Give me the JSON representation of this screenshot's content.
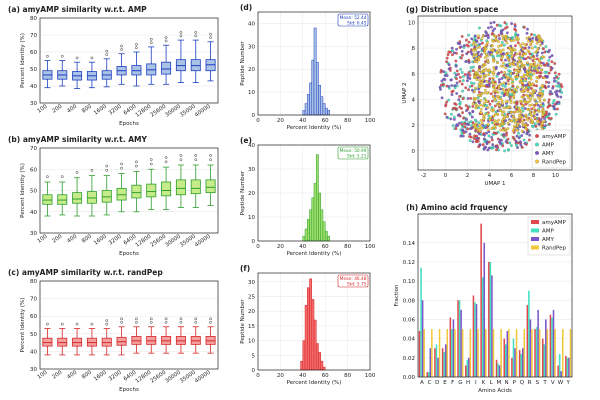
{
  "colors": {
    "amyAMP": "#e0474c",
    "AMP": "#40e0c0",
    "AMY": "#7a55c8",
    "RandPep": "#f2c93a",
    "blue": "#1f3fbf",
    "green": "#2e9e2e",
    "red": "#d62728",
    "grid": "#e6e6e6"
  },
  "chart_data": [
    {
      "type": "box",
      "panel": "a",
      "title": "(a) amyAMP similarity w.r.t. AMP",
      "xlabel": "Epochs",
      "ylabel": "Percent Identity (%)",
      "ylim": [
        30,
        80
      ],
      "yticks": [
        30,
        40,
        50,
        60,
        70,
        80
      ],
      "categories": [
        "100",
        "200",
        "400",
        "800",
        "1600",
        "3200",
        "6400",
        "12800",
        "25600",
        "30000",
        "35000",
        "40000"
      ],
      "medians": [
        46.5,
        46.5,
        46,
        46,
        46.5,
        49,
        49,
        49.5,
        50,
        52,
        52,
        52.5
      ],
      "q1": [
        44,
        44,
        43.5,
        43.5,
        44,
        46.5,
        46.5,
        46.5,
        47,
        49,
        49,
        49
      ],
      "q3": [
        49,
        49,
        48.5,
        48.5,
        49,
        51.5,
        52,
        53,
        54,
        55.5,
        55.5,
        55.5
      ],
      "whisker_low": [
        39,
        40,
        38.5,
        39,
        39.5,
        41,
        40,
        41,
        41,
        42,
        42,
        43
      ],
      "whisker_high": [
        55,
        55,
        54,
        54,
        56,
        59,
        60,
        63,
        64,
        67,
        67,
        66
      ],
      "color": "#1f3fbf",
      "fill": "#a9c2e6"
    },
    {
      "type": "box",
      "panel": "b",
      "title": "(b) amyAMP similarity w.r.t. AMY",
      "xlabel": "Epochs",
      "ylabel": "Percent Identity (%)",
      "ylim": [
        30,
        70
      ],
      "yticks": [
        30,
        40,
        50,
        60,
        70
      ],
      "categories": [
        "100",
        "200",
        "400",
        "800",
        "1600",
        "3200",
        "6400",
        "12800",
        "25600",
        "30000",
        "35000",
        "40000"
      ],
      "medians": [
        45.5,
        45.5,
        46,
        46.5,
        47,
        48,
        49,
        49.5,
        50,
        51,
        51,
        51.5
      ],
      "q1": [
        43.5,
        43.5,
        44,
        44,
        44.5,
        45.5,
        46.5,
        47,
        47.5,
        48,
        48.5,
        49
      ],
      "q3": [
        48,
        48,
        49,
        49.5,
        50,
        51,
        52.5,
        53,
        54,
        55,
        55,
        55
      ],
      "whisker_low": [
        38,
        38.5,
        38,
        38,
        38.5,
        40,
        40,
        41,
        41,
        42,
        42,
        43
      ],
      "whisker_high": [
        54,
        54,
        56,
        57,
        57,
        58,
        59,
        60,
        61,
        62,
        62,
        62
      ],
      "color": "#2e9e2e",
      "fill": "#c6ec8a"
    },
    {
      "type": "box",
      "panel": "c",
      "title": "(c) amyAMP similarity w.r.t. randPep",
      "xlabel": "Epochs",
      "ylabel": "Percent Identity (%)",
      "ylim": [
        30,
        80
      ],
      "yticks": [
        30,
        40,
        50,
        60,
        70,
        80
      ],
      "categories": [
        "100",
        "200",
        "400",
        "800",
        "1600",
        "3200",
        "6400",
        "12800",
        "25600",
        "30000",
        "35000",
        "40000"
      ],
      "medians": [
        45,
        45,
        45,
        45,
        45,
        45.5,
        46,
        46,
        46,
        46,
        46,
        46
      ],
      "q1": [
        43,
        43,
        43,
        43,
        43,
        43.5,
        44,
        44,
        44,
        44,
        44,
        44
      ],
      "q3": [
        47.5,
        47.5,
        47.5,
        47.5,
        47.5,
        48,
        48.5,
        48.5,
        48.5,
        48.5,
        48.5,
        48.5
      ],
      "whisker_low": [
        38,
        38,
        38,
        38,
        38,
        38,
        39,
        39,
        39,
        39,
        39,
        39
      ],
      "whisker_high": [
        53,
        53,
        53,
        53,
        53,
        54,
        54,
        54,
        54,
        54,
        54,
        54
      ],
      "color": "#d62728",
      "fill": "#f3a0a0"
    },
    {
      "type": "histogram",
      "panel": "d",
      "xlabel": "Percent Identity (%)",
      "ylabel": "Peptide Number",
      "xlim": [
        0,
        100
      ],
      "ylim": [
        0,
        45
      ],
      "xticks": [
        0,
        20,
        40,
        60,
        80,
        100
      ],
      "yticks": [
        0,
        10,
        20,
        30,
        40
      ],
      "bin_start": 40,
      "bin_width": 2,
      "counts": [
        2,
        5,
        9,
        14,
        24,
        38,
        23,
        13,
        8,
        5,
        3,
        2
      ],
      "stats": {
        "mean": "Mean: 52.44",
        "std": "Std: 6.45"
      },
      "color": "#1f3fbf",
      "fill": "#a9c2e6"
    },
    {
      "type": "histogram",
      "panel": "e",
      "xlabel": "Percent Identity (%)",
      "ylabel": "Peptide Number",
      "xlim": [
        0,
        100
      ],
      "ylim": [
        0,
        40
      ],
      "xticks": [
        0,
        20,
        40,
        60,
        80,
        100
      ],
      "yticks": [
        0,
        10,
        20,
        30,
        40
      ],
      "bin_start": 40,
      "bin_width": 2,
      "counts": [
        2,
        5,
        9,
        13,
        18,
        24,
        36,
        20,
        13,
        8,
        4,
        2
      ],
      "stats": {
        "mean": "Mean: 50.99",
        "std": "Std: 5.21"
      },
      "color": "#2e9e2e",
      "fill": "#9ee06a"
    },
    {
      "type": "histogram",
      "panel": "f",
      "xlabel": "Percent Identity (%)",
      "ylabel": "Peptide Number",
      "xlim": [
        0,
        100
      ],
      "ylim": [
        0,
        33
      ],
      "xticks": [
        0,
        20,
        40,
        60,
        80,
        100
      ],
      "yticks": [
        0,
        5,
        10,
        15,
        20,
        25,
        30
      ],
      "bin_start": 38,
      "bin_width": 2,
      "counts": [
        3,
        10,
        22,
        28,
        31,
        24,
        17,
        9,
        6,
        3,
        1
      ],
      "stats": {
        "mean": "Mean: 46.48",
        "std": "Std: 5.75"
      },
      "color": "#d62728",
      "fill": "#f36a6a"
    },
    {
      "type": "scatter",
      "panel": "g",
      "title": "(g) Distribution space",
      "xlabel": "UMAP 1",
      "ylabel": "UMAP 2",
      "xlim": [
        -2.5,
        11.5
      ],
      "ylim": [
        -1.5,
        10.5
      ],
      "xticks": [
        -2,
        0,
        2,
        4,
        6,
        8,
        10
      ],
      "yticks": [
        0,
        2,
        4,
        6,
        8,
        10
      ],
      "series": [
        {
          "name": "amyAMP"
        },
        {
          "name": "AMP"
        },
        {
          "name": "AMY"
        },
        {
          "name": "RandPep"
        }
      ],
      "legend": "bottom-right"
    },
    {
      "type": "bar",
      "panel": "h",
      "title": "(h) Amino acid frquency",
      "xlabel": "Amino Acids",
      "ylabel": "Fraction",
      "ylim": [
        0,
        0.17
      ],
      "yticks": [
        0.0,
        0.02,
        0.04,
        0.06,
        0.08,
        0.1,
        0.12,
        0.14
      ],
      "categories": [
        "A",
        "C",
        "D",
        "E",
        "F",
        "G",
        "H",
        "I",
        "K",
        "L",
        "M",
        "N",
        "P",
        "Q",
        "R",
        "S",
        "T",
        "V",
        "W",
        "Y"
      ],
      "series": [
        {
          "name": "amyAMP",
          "values": [
            0.048,
            0.005,
            0.03,
            0.03,
            0.062,
            0.08,
            0.012,
            0.085,
            0.16,
            0.12,
            0.018,
            0.04,
            0.02,
            0.028,
            0.075,
            0.05,
            0.04,
            0.065,
            0.012,
            0.022
          ]
        },
        {
          "name": "AMP",
          "values": [
            0.114,
            0.005,
            0.034,
            0.026,
            0.05,
            0.08,
            0.018,
            0.078,
            0.104,
            0.12,
            0.014,
            0.034,
            0.04,
            0.024,
            0.09,
            0.052,
            0.034,
            0.062,
            0.024,
            0.02
          ]
        },
        {
          "name": "AMY",
          "values": [
            0.08,
            0.03,
            0.02,
            0.034,
            0.06,
            0.07,
            0.02,
            0.076,
            0.14,
            0.106,
            0.012,
            0.048,
            0.03,
            0.03,
            0.06,
            0.07,
            0.06,
            0.07,
            0.006,
            0.02
          ]
        },
        {
          "name": "RandPep",
          "values": [
            0.05,
            0.05,
            0.05,
            0.05,
            0.05,
            0.05,
            0.05,
            0.05,
            0.05,
            0.05,
            0.05,
            0.05,
            0.05,
            0.05,
            0.05,
            0.05,
            0.05,
            0.05,
            0.05,
            0.05
          ]
        }
      ],
      "legend": "top-right"
    }
  ]
}
